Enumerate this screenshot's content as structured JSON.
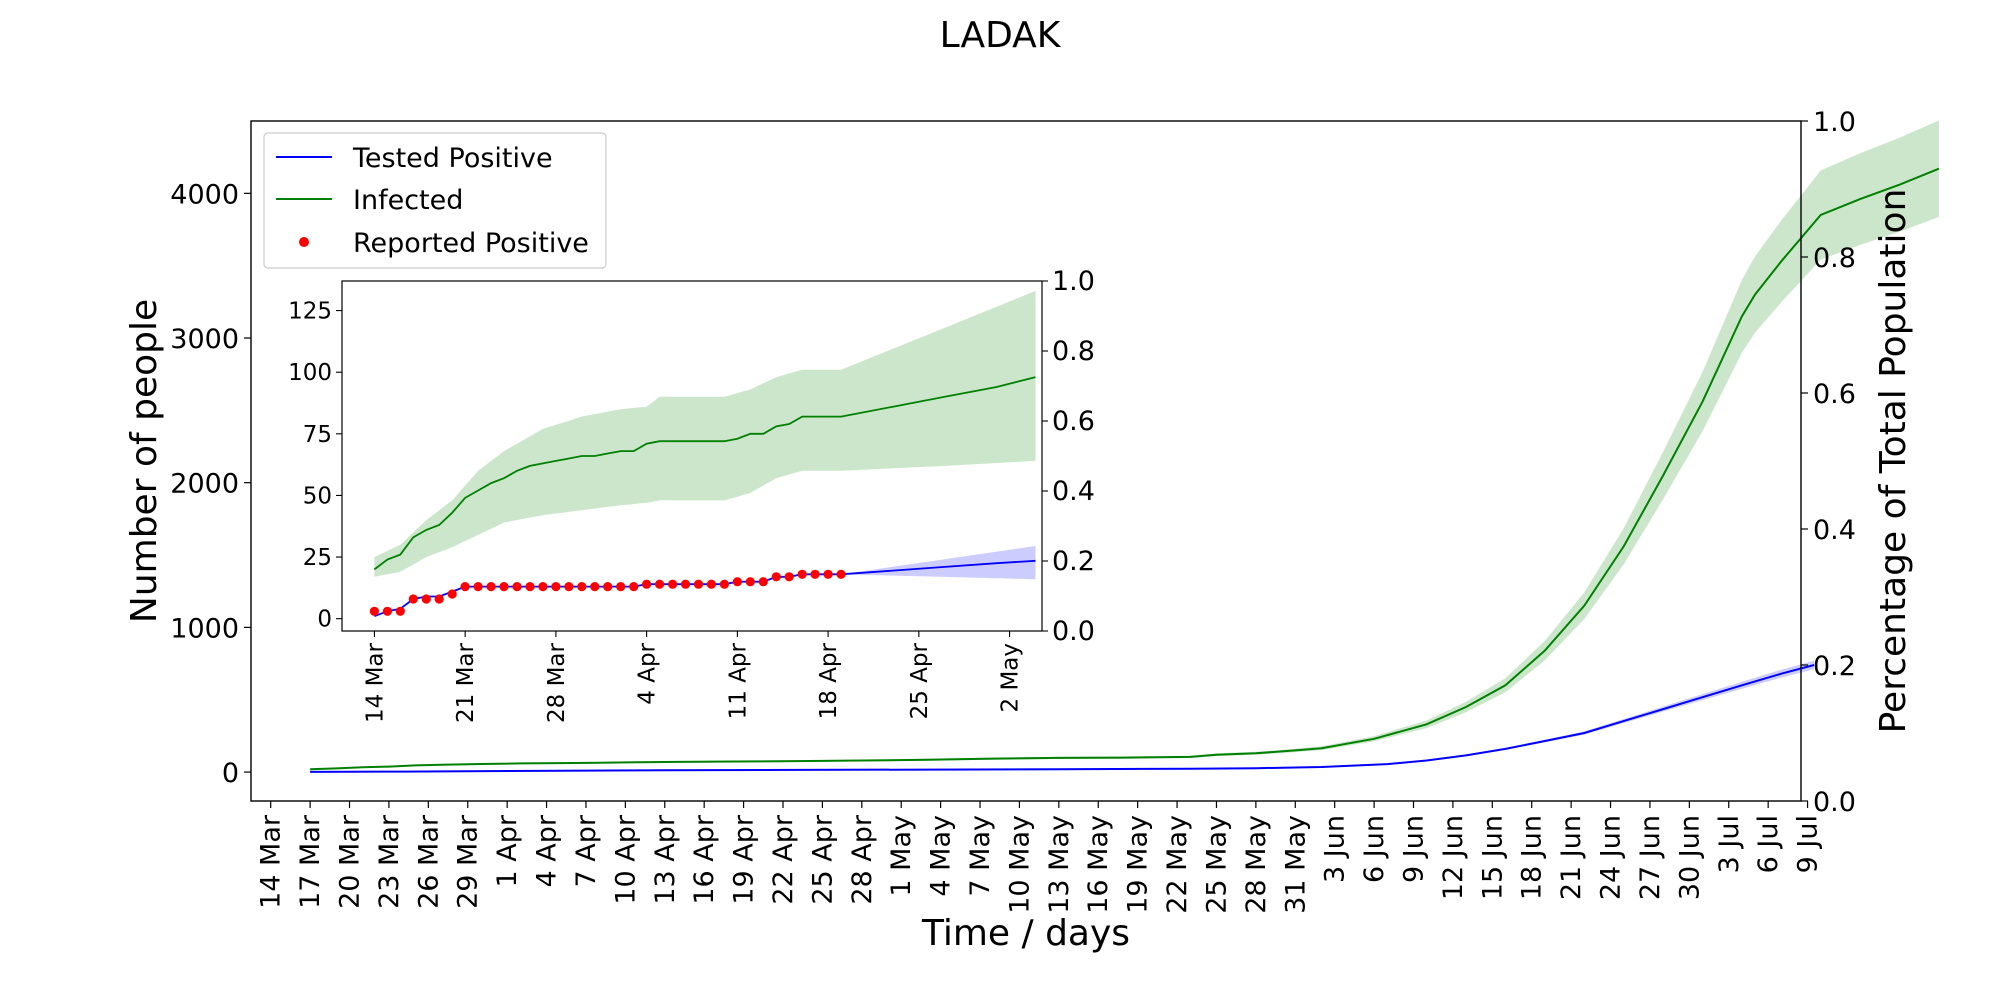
{
  "chart_data": [
    {
      "id": "main",
      "type": "line",
      "title": "LADAK",
      "xlabel": "Time / days",
      "ylabel": "Number of people",
      "y2label": "Percentage of Total Population",
      "x_ticks": [
        "14 Mar",
        "17 Mar",
        "20 Mar",
        "23 Mar",
        "26 Mar",
        "29 Mar",
        "1 Apr",
        "4 Apr",
        "7 Apr",
        "10 Apr",
        "13 Apr",
        "16 Apr",
        "19 Apr",
        "22 Apr",
        "25 Apr",
        "28 Apr",
        "1 May",
        "4 May",
        "7 May",
        "10 May",
        "13 May",
        "16 May",
        "19 May",
        "22 May",
        "25 May",
        "28 May",
        "31 May",
        "3 Jun",
        "6 Jun",
        "9 Jun",
        "12 Jun",
        "15 Jun",
        "18 Jun",
        "21 Jun",
        "24 Jun",
        "27 Jun",
        "30 Jun",
        "3 Jul",
        "6 Jul",
        "9 Jul"
      ],
      "y_ticks": [
        "0",
        "1000",
        "2000",
        "3000",
        "4000"
      ],
      "y2_ticks": [
        "0.0",
        "0.2",
        "0.4",
        "0.6",
        "0.8",
        "1.0"
      ],
      "xlim_days": [
        -1.5,
        116.5
      ],
      "ylim": [
        -200,
        4500
      ],
      "y2lim": [
        0.0,
        1.0
      ],
      "legend": {
        "placement": "upper-left",
        "entries": [
          {
            "label": "Tested Positive",
            "color": "#0000ff",
            "style": "line"
          },
          {
            "label": "Infected",
            "color": "#008000",
            "style": "line"
          },
          {
            "label": "Reported Positive",
            "color": "#ff0000",
            "style": "dot"
          }
        ]
      },
      "series": [
        {
          "name": "Tested Positive",
          "color": "#0000ff",
          "band_color": "#0000ff",
          "points": [
            [
              3,
              1
            ],
            [
              10,
              3
            ],
            [
              20,
              8
            ],
            [
              30,
              12
            ],
            [
              40,
              15
            ],
            [
              50,
              17
            ],
            [
              60,
              20
            ],
            [
              70,
              23
            ],
            [
              75,
              27
            ],
            [
              80,
              35
            ],
            [
              85,
              55
            ],
            [
              88,
              80
            ],
            [
              91,
              115
            ],
            [
              94,
              160
            ],
            [
              97,
              215
            ],
            [
              100,
              270
            ],
            [
              104,
              380
            ],
            [
              108,
              490
            ],
            [
              112,
              600
            ],
            [
              115,
              680
            ],
            [
              117.5,
              740
            ]
          ],
          "band_spread": 0.04
        },
        {
          "name": "Infected",
          "color": "#008000",
          "band_color": "#008000",
          "points": [
            [
              3,
              20
            ],
            [
              5,
              25
            ],
            [
              7,
              33
            ],
            [
              9,
              38
            ],
            [
              11,
              46
            ],
            [
              13,
              50
            ],
            [
              16,
              56
            ],
            [
              19,
              60
            ],
            [
              22,
              62
            ],
            [
              25,
              64
            ],
            [
              28,
              68
            ],
            [
              31,
              70
            ],
            [
              34,
              72
            ],
            [
              37,
              74
            ],
            [
              40,
              76
            ],
            [
              45,
              80
            ],
            [
              50,
              85
            ],
            [
              55,
              93
            ],
            [
              60,
              98
            ],
            [
              65,
              100
            ],
            [
              70,
              105
            ],
            [
              72,
              120
            ],
            [
              75,
              130
            ],
            [
              78,
              150
            ],
            [
              80,
              165
            ],
            [
              84,
              230
            ],
            [
              88,
              330
            ],
            [
              91,
              450
            ],
            [
              94,
              600
            ],
            [
              97,
              840
            ],
            [
              100,
              1150
            ],
            [
              103,
              1560
            ],
            [
              106,
              2050
            ],
            [
              109,
              2560
            ],
            [
              112,
              3150
            ],
            [
              113,
              3300
            ],
            [
              115,
              3530
            ],
            [
              118,
              3850
            ],
            [
              121,
              3960
            ],
            [
              124,
              4060
            ],
            [
              127,
              4170
            ]
          ],
          "band_spread": 0.08
        }
      ]
    },
    {
      "id": "inset",
      "type": "line",
      "x_ticks": [
        "14 Mar",
        "21 Mar",
        "28 Mar",
        "4 Apr",
        "11 Apr",
        "18 Apr",
        "25 Apr",
        "2 May"
      ],
      "y_ticks": [
        "0",
        "25",
        "50",
        "75",
        "100",
        "125"
      ],
      "y2_ticks": [
        "0.0",
        "0.2",
        "0.4",
        "0.6",
        "0.8",
        "1.0"
      ],
      "xlim_days": [
        -2.5,
        51.5
      ],
      "ylim": [
        -5,
        137
      ],
      "y2lim": [
        0.0,
        1.0
      ],
      "series": [
        {
          "name": "Tested Positive",
          "color": "#0000ff",
          "points": [
            [
              0,
              1
            ],
            [
              1,
              3
            ],
            [
              2,
              4
            ],
            [
              3,
              8
            ],
            [
              4,
              9
            ],
            [
              5,
              9
            ],
            [
              6,
              11
            ],
            [
              7,
              13
            ],
            [
              8,
              13
            ],
            [
              9,
              13
            ],
            [
              10,
              13
            ],
            [
              11,
              13
            ],
            [
              12,
              13
            ],
            [
              13,
              13
            ],
            [
              14,
              13
            ],
            [
              15,
              13
            ],
            [
              16,
              13
            ],
            [
              17,
              13
            ],
            [
              18,
              13
            ],
            [
              19,
              13
            ],
            [
              20,
              13
            ],
            [
              21,
              14
            ],
            [
              22,
              14
            ],
            [
              23,
              14
            ],
            [
              24,
              14
            ],
            [
              25,
              14
            ],
            [
              26,
              14
            ],
            [
              27,
              14
            ],
            [
              28,
              15
            ],
            [
              29,
              15
            ],
            [
              30,
              15
            ],
            [
              31,
              17
            ],
            [
              32,
              17
            ],
            [
              33,
              18
            ],
            [
              34,
              18
            ],
            [
              35,
              18
            ],
            [
              36,
              18
            ],
            [
              40,
              19.5
            ],
            [
              44,
              21
            ],
            [
              48,
              22.5
            ],
            [
              51,
              23.5
            ]
          ],
          "band_lower": [
            [
              36,
              18
            ],
            [
              51,
              16
            ]
          ],
          "band_upper": [
            [
              36,
              18
            ],
            [
              51,
              29.5
            ]
          ]
        },
        {
          "name": "Infected",
          "color": "#008000",
          "points": [
            [
              0,
              20
            ],
            [
              1,
              24
            ],
            [
              2,
              26
            ],
            [
              3,
              33
            ],
            [
              4,
              36
            ],
            [
              5,
              38
            ],
            [
              6,
              43
            ],
            [
              7,
              49
            ],
            [
              8,
              52
            ],
            [
              9,
              55
            ],
            [
              10,
              57
            ],
            [
              11,
              60
            ],
            [
              12,
              62
            ],
            [
              13,
              63
            ],
            [
              14,
              64
            ],
            [
              15,
              65
            ],
            [
              16,
              66
            ],
            [
              17,
              66
            ],
            [
              18,
              67
            ],
            [
              19,
              68
            ],
            [
              20,
              68
            ],
            [
              21,
              71
            ],
            [
              22,
              72
            ],
            [
              23,
              72
            ],
            [
              24,
              72
            ],
            [
              25,
              72
            ],
            [
              26,
              72
            ],
            [
              27,
              72
            ],
            [
              28,
              73
            ],
            [
              29,
              75
            ],
            [
              30,
              75
            ],
            [
              31,
              78
            ],
            [
              32,
              79
            ],
            [
              33,
              82
            ],
            [
              34,
              82
            ],
            [
              35,
              82
            ],
            [
              36,
              82
            ],
            [
              40,
              86
            ],
            [
              44,
              90
            ],
            [
              48,
              94
            ],
            [
              51,
              98
            ]
          ],
          "band_lower": [
            [
              0,
              17
            ],
            [
              2,
              19
            ],
            [
              4,
              25
            ],
            [
              6,
              29
            ],
            [
              8,
              34
            ],
            [
              10,
              39
            ],
            [
              13,
              42
            ],
            [
              16,
              44
            ],
            [
              19,
              46
            ],
            [
              21,
              47
            ],
            [
              22,
              48
            ],
            [
              24,
              48
            ],
            [
              27,
              48
            ],
            [
              29,
              51
            ],
            [
              31,
              57
            ],
            [
              33,
              60
            ],
            [
              36,
              60
            ],
            [
              44,
              62
            ],
            [
              51,
              64
            ]
          ],
          "band_upper": [
            [
              0,
              25
            ],
            [
              2,
              30
            ],
            [
              4,
              40
            ],
            [
              6,
              48
            ],
            [
              8,
              60
            ],
            [
              10,
              68
            ],
            [
              13,
              77
            ],
            [
              16,
              82
            ],
            [
              19,
              85
            ],
            [
              21,
              86
            ],
            [
              22,
              90
            ],
            [
              24,
              90
            ],
            [
              27,
              90
            ],
            [
              29,
              93
            ],
            [
              31,
              98
            ],
            [
              33,
              101
            ],
            [
              36,
              101
            ],
            [
              44,
              118
            ],
            [
              51,
              133
            ]
          ]
        },
        {
          "name": "Reported Positive",
          "color": "#ff0000",
          "marker": "dot",
          "points": [
            [
              0,
              3
            ],
            [
              1,
              3
            ],
            [
              2,
              3
            ],
            [
              3,
              8
            ],
            [
              4,
              8
            ],
            [
              5,
              8
            ],
            [
              6,
              10
            ],
            [
              7,
              13
            ],
            [
              8,
              13
            ],
            [
              9,
              13
            ],
            [
              10,
              13
            ],
            [
              11,
              13
            ],
            [
              12,
              13
            ],
            [
              13,
              13
            ],
            [
              14,
              13
            ],
            [
              15,
              13
            ],
            [
              16,
              13
            ],
            [
              17,
              13
            ],
            [
              18,
              13
            ],
            [
              19,
              13
            ],
            [
              20,
              13
            ],
            [
              21,
              14
            ],
            [
              22,
              14
            ],
            [
              23,
              14
            ],
            [
              24,
              14
            ],
            [
              25,
              14
            ],
            [
              26,
              14
            ],
            [
              27,
              14
            ],
            [
              28,
              15
            ],
            [
              29,
              15
            ],
            [
              30,
              15
            ],
            [
              31,
              17
            ],
            [
              32,
              17
            ],
            [
              33,
              18
            ],
            [
              34,
              18
            ],
            [
              35,
              18
            ],
            [
              36,
              18
            ]
          ]
        }
      ]
    }
  ]
}
